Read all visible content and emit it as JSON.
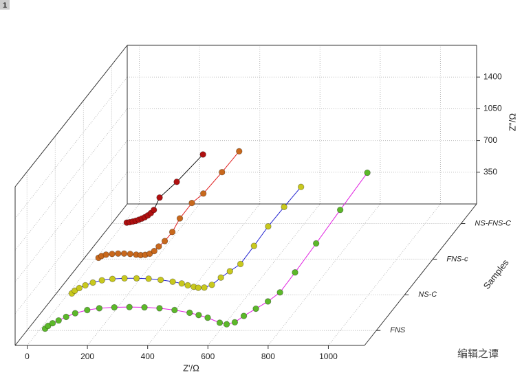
{
  "chart_data": {
    "type": "scatter3d",
    "layer_label": "1",
    "x_label": "Z'/Ω",
    "z_label": "Z''/Ω",
    "depth_label": "Samples",
    "watermark": "编辑之谭",
    "xlim": [
      -40,
      1120
    ],
    "xticks": [
      0,
      200,
      400,
      600,
      800,
      1000
    ],
    "zlim": [
      0,
      1750
    ],
    "zticks": [
      350,
      700,
      1050,
      1400
    ],
    "grid": true,
    "categories": [
      "FNS",
      "NS-C",
      "FNS-c",
      "NS-FNS-C"
    ],
    "series": [
      {
        "name": "FNS",
        "color": "#5cb82a",
        "line_color": "#e020e0",
        "x": [
          20,
          30,
          45,
          65,
          90,
          120,
          160,
          200,
          250,
          300,
          350,
          400,
          450,
          500,
          530,
          560,
          600,
          623,
          650,
          680,
          720,
          760,
          800,
          850,
          920,
          1000,
          1090
        ],
        "values": [
          20,
          50,
          80,
          110,
          150,
          190,
          225,
          245,
          255,
          258,
          255,
          245,
          225,
          195,
          170,
          140,
          85,
          68,
          90,
          160,
          240,
          320,
          420,
          640,
          960,
          1330,
          1740
        ]
      },
      {
        "name": "NS-C",
        "color": "#c8c81e",
        "line_color": "#2020d0",
        "x": [
          15,
          25,
          40,
          60,
          85,
          115,
          150,
          190,
          230,
          270,
          310,
          350,
          380,
          400,
          420,
          435,
          455,
          480,
          510,
          540,
          575,
          620,
          667,
          720,
          776
        ],
        "values": [
          15,
          45,
          75,
          105,
          135,
          160,
          175,
          182,
          182,
          178,
          165,
          145,
          125,
          105,
          88,
          78,
          80,
          110,
          190,
          260,
          340,
          540,
          755,
          970,
          1190
        ]
      },
      {
        "name": "FNS-c",
        "color": "#c8681c",
        "line_color": "#e02020",
        "x": [
          10,
          20,
          35,
          55,
          75,
          95,
          115,
          135,
          150,
          165,
          180,
          195,
          210,
          230,
          255,
          280,
          320,
          358,
          420,
          477
        ],
        "values": [
          15,
          35,
          50,
          58,
          62,
          62,
          58,
          50,
          45,
          48,
          60,
          90,
          140,
          200,
          300,
          450,
          620,
          724,
          960,
          1190
        ]
      },
      {
        "name": "NS-FNS-C",
        "color": "#b01010",
        "line_color": "#111111",
        "x": [
          10,
          20,
          30,
          40,
          50,
          60,
          70,
          80,
          90,
          100,
          119,
          176,
          263
        ],
        "values": [
          10,
          15,
          22,
          30,
          42,
          55,
          70,
          90,
          115,
          150,
          287,
          460,
          762
        ]
      }
    ]
  }
}
